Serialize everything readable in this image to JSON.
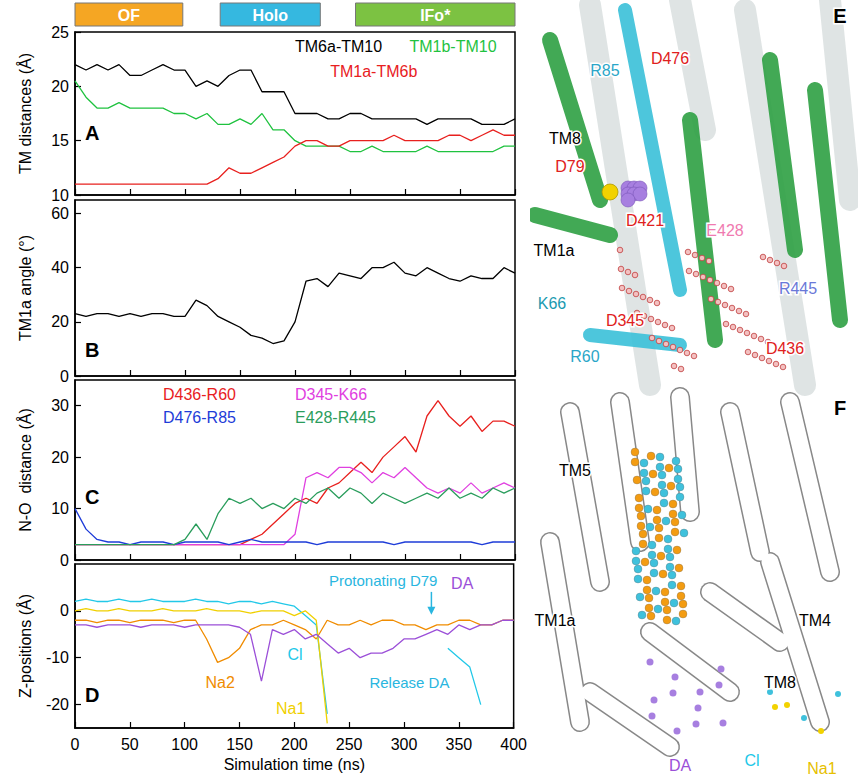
{
  "states": [
    {
      "label": "OF",
      "start": 0,
      "end": 98,
      "color": "#f5a623"
    },
    {
      "label": "Holo",
      "start": 132,
      "end": 223,
      "color": "#35b8e0"
    },
    {
      "label": "IFo*",
      "start": 255,
      "end": 400,
      "color": "#7cc242"
    }
  ],
  "chart_data": [
    {
      "type": "line",
      "panel": "A",
      "x": [
        0,
        10,
        20,
        30,
        40,
        50,
        60,
        70,
        80,
        90,
        100,
        110,
        120,
        130,
        140,
        150,
        160,
        170,
        180,
        190,
        200,
        210,
        220,
        230,
        240,
        250,
        260,
        270,
        280,
        290,
        300,
        310,
        320,
        330,
        340,
        350,
        360,
        370,
        380,
        390,
        400
      ],
      "xlim": [
        0,
        400
      ],
      "xticks": [
        0,
        50,
        100,
        150,
        200,
        250,
        300,
        350,
        400
      ],
      "ylim": [
        10,
        25
      ],
      "yticks": [
        10,
        15,
        20,
        25
      ],
      "y_label": "TM distances (Å)",
      "tick_labels": "y",
      "grid": false,
      "series": [
        {
          "name": "TM6a-TM10",
          "color": "#000000",
          "values": [
            22,
            21.5,
            22,
            21.5,
            22,
            21,
            21,
            21.5,
            22,
            21.5,
            21.5,
            20,
            20.5,
            20,
            21,
            21.5,
            21.5,
            19.5,
            19.5,
            19.5,
            17.5,
            17.5,
            17.5,
            17,
            17,
            17.5,
            17.5,
            17,
            17,
            17,
            17,
            17,
            16.5,
            17,
            17,
            17,
            17,
            16.5,
            16.5,
            16.5,
            17
          ]
        },
        {
          "name": "TM1b-TM10",
          "color": "#1fc23f",
          "values": [
            20.5,
            19,
            18,
            18,
            18.5,
            18,
            18,
            18,
            18,
            17.5,
            17.5,
            17,
            17.5,
            16.5,
            16.5,
            17,
            16.5,
            17.5,
            16,
            16,
            15,
            14.5,
            14.5,
            14.5,
            14.5,
            14,
            14,
            14.5,
            14,
            14,
            14,
            14,
            14.5,
            14,
            14,
            14,
            14,
            14,
            14,
            14.5,
            14.5
          ]
        },
        {
          "name": "TM1a-TM6b",
          "color": "#e8201e",
          "values": [
            11,
            11,
            11,
            11,
            11,
            11,
            11,
            11,
            11,
            11,
            11,
            11,
            11,
            11.5,
            12.5,
            12,
            12,
            12.5,
            13,
            13.5,
            14.5,
            15,
            15,
            14.5,
            14.5,
            15,
            15,
            15,
            15,
            15.5,
            15,
            15,
            15,
            15,
            15.5,
            15.5,
            15,
            15.5,
            16,
            15.5,
            15.5
          ]
        }
      ]
    },
    {
      "type": "line",
      "panel": "B",
      "x": [
        0,
        10,
        20,
        30,
        40,
        50,
        60,
        70,
        80,
        90,
        100,
        110,
        120,
        130,
        140,
        150,
        160,
        170,
        180,
        190,
        200,
        210,
        220,
        230,
        240,
        250,
        260,
        270,
        280,
        290,
        300,
        310,
        320,
        330,
        340,
        350,
        360,
        370,
        380,
        390,
        400
      ],
      "xlim": [
        0,
        400
      ],
      "xticks": [
        0,
        50,
        100,
        150,
        200,
        250,
        300,
        350,
        400
      ],
      "ylim": [
        0,
        65
      ],
      "yticks": [
        0,
        20,
        40,
        60
      ],
      "y_label": "TM1a angle (°)",
      "tick_labels": "y",
      "grid": false,
      "color": "#000000",
      "values": [
        23,
        22,
        23,
        23,
        22,
        23,
        22,
        23,
        23,
        22,
        22,
        28,
        26,
        22,
        20,
        18,
        15,
        14,
        12,
        13,
        20,
        35,
        36,
        33,
        38,
        37,
        36,
        40,
        40,
        42,
        38,
        37,
        40,
        38,
        36,
        35,
        37,
        36,
        36,
        40,
        38
      ]
    },
    {
      "type": "line",
      "panel": "C",
      "x": [
        0,
        10,
        20,
        30,
        40,
        50,
        60,
        70,
        80,
        90,
        100,
        110,
        120,
        130,
        140,
        150,
        160,
        170,
        180,
        190,
        200,
        210,
        220,
        230,
        240,
        250,
        260,
        270,
        280,
        290,
        300,
        310,
        320,
        330,
        340,
        350,
        360,
        370,
        380,
        390,
        400
      ],
      "xlim": [
        0,
        400
      ],
      "xticks": [
        0,
        50,
        100,
        150,
        200,
        250,
        300,
        350,
        400
      ],
      "ylim": [
        0,
        35
      ],
      "yticks": [
        0,
        10,
        20,
        30
      ],
      "y_label": "N-O  distance (Å)",
      "tick_labels": "y",
      "grid": false,
      "series": [
        {
          "name": "D436-R60",
          "color": "#e8201e",
          "values": [
            3,
            3,
            3,
            3,
            3,
            3,
            3,
            3,
            3,
            3,
            3,
            3,
            3,
            3,
            3,
            3,
            4,
            5,
            7,
            9,
            11,
            12,
            11,
            14,
            15,
            17,
            19,
            17,
            20,
            22,
            24,
            21,
            28,
            31,
            28,
            26,
            28,
            25,
            27,
            27,
            26
          ]
        },
        {
          "name": "D345-K66",
          "color": "#e040e0",
          "values": [
            3,
            3,
            3,
            3,
            3,
            3,
            3,
            3,
            3,
            3,
            3,
            3,
            3,
            3,
            3,
            3,
            3,
            3,
            3,
            3,
            5,
            16,
            17,
            16,
            18,
            18,
            17,
            15,
            17,
            16,
            18,
            16,
            14,
            13,
            14,
            13,
            15,
            13,
            14,
            15,
            14
          ]
        },
        {
          "name": "D476-R85",
          "color": "#1e3cd8",
          "values": [
            10,
            6,
            4,
            3.5,
            3.5,
            3,
            3.5,
            3.5,
            3.5,
            3,
            3.5,
            3.5,
            3.5,
            3.5,
            3,
            3.5,
            4,
            3.5,
            3.5,
            3.5,
            3.5,
            3.5,
            3,
            3.5,
            3.5,
            3.5,
            3.5,
            3.5,
            3.5,
            3,
            3.5,
            3.5,
            3.5,
            3.5,
            3.5,
            3.5,
            3.5,
            3,
            3.5,
            3.5,
            3.5
          ]
        },
        {
          "name": "E428-R445",
          "color": "#2a9d5c",
          "values": [
            3,
            3,
            3,
            3,
            3,
            3,
            3,
            3,
            3,
            3,
            4,
            7,
            4,
            9,
            12,
            11,
            12,
            10,
            11,
            10,
            12,
            11,
            13,
            14,
            12,
            14,
            13,
            11,
            13,
            12,
            11,
            12,
            13,
            12,
            14,
            12,
            13,
            12,
            14,
            13,
            14
          ]
        }
      ]
    },
    {
      "type": "line",
      "panel": "D",
      "x": [
        0,
        10,
        20,
        30,
        40,
        50,
        60,
        70,
        80,
        90,
        100,
        110,
        120,
        130,
        140,
        150,
        160,
        170,
        180,
        190,
        200,
        210,
        220,
        230,
        240,
        250,
        260,
        270,
        280,
        290,
        300,
        310,
        320,
        330,
        340,
        350,
        360,
        370,
        380,
        390,
        400
      ],
      "xlim": [
        0,
        400
      ],
      "xticks": [
        0,
        50,
        100,
        150,
        200,
        250,
        300,
        350,
        400
      ],
      "ylim": [
        -25,
        10
      ],
      "yticks": [
        -20,
        -10,
        0
      ],
      "x_label": "Simulation time (ns)",
      "y_label": "Z-positions (Å)",
      "grid": false,
      "series": [
        {
          "name": "Na2",
          "color": "#f08c00",
          "values": [
            -2,
            -2,
            -2.5,
            -2,
            -2,
            -2.5,
            -2,
            -2,
            -2,
            -2.5,
            -2,
            -2,
            -6,
            -11,
            -10,
            -8,
            -4,
            -3,
            -3,
            -2,
            -3,
            -4,
            -6,
            -2,
            -3,
            -3,
            -2,
            -3,
            -2,
            -2,
            -3,
            -3,
            -4,
            -3,
            -3,
            -2,
            -2,
            -3,
            -3,
            -2,
            -2
          ]
        },
        {
          "name": "Cl",
          "color": "#22c8e8",
          "values": [
            2,
            2.5,
            2,
            2,
            2.5,
            2,
            2,
            2.5,
            2,
            2,
            2,
            2.5,
            2,
            2,
            1.5,
            2,
            2,
            1.5,
            2,
            1.5,
            1,
            -1,
            -3,
            -22,
            null,
            null,
            null,
            null,
            null,
            null,
            null,
            null,
            null,
            null,
            -8,
            -10,
            -12,
            -20,
            null,
            null,
            null
          ]
        },
        {
          "name": "Na1",
          "color": "#f0d000",
          "values": [
            0,
            0.5,
            0,
            0,
            0.5,
            0,
            0,
            0,
            0.5,
            0,
            0,
            0,
            0.5,
            0,
            0,
            0,
            -0.5,
            0,
            0,
            0,
            -1,
            0,
            -2,
            -24,
            null,
            null,
            null,
            null,
            null,
            null,
            null,
            null,
            null,
            null,
            null,
            null,
            null,
            null,
            null,
            null,
            null
          ]
        },
        {
          "name": "DA",
          "color": "#9b4fd8",
          "values": [
            -3,
            -3,
            -3.5,
            -3,
            -3,
            -3,
            -3.5,
            -3,
            -3,
            -3,
            -3.5,
            -3,
            -3,
            -3,
            -3,
            -3.5,
            -5,
            -15,
            -4,
            -5,
            -4,
            -6,
            -5,
            -7,
            -9,
            -8,
            -10,
            -9,
            -9,
            -8,
            -6,
            -6,
            -5,
            -4,
            -5,
            -3,
            -4,
            -3,
            -3,
            -2,
            -2
          ]
        }
      ],
      "annotations": [
        {
          "text": "Protonating D79",
          "x": 325,
          "color": "#29b6e0"
        },
        {
          "text": "Release DA",
          "color": "#29b6e0"
        }
      ]
    }
  ],
  "structures": [
    {
      "panel": "E",
      "labels": [
        {
          "text": "R85",
          "color": "#2aa6c8"
        },
        {
          "text": "D476",
          "color": "#e02020"
        },
        {
          "text": "TM8",
          "color": "#000000"
        },
        {
          "text": "D79",
          "color": "#e02020"
        },
        {
          "text": "D421",
          "color": "#e02020"
        },
        {
          "text": "TM1a",
          "color": "#000000"
        },
        {
          "text": "K66",
          "color": "#1a9ab0"
        },
        {
          "text": "E428",
          "color": "#f07ab0"
        },
        {
          "text": "R445",
          "color": "#6a78d8"
        },
        {
          "text": "D345",
          "color": "#e02020"
        },
        {
          "text": "R60",
          "color": "#2aa6c8"
        },
        {
          "text": "D436",
          "color": "#e02020"
        }
      ]
    },
    {
      "panel": "F",
      "labels": [
        {
          "text": "TM5",
          "color": "#000000"
        },
        {
          "text": "TM1a",
          "color": "#000000"
        },
        {
          "text": "TM4",
          "color": "#000000"
        },
        {
          "text": "TM8",
          "color": "#000000"
        },
        {
          "text": "DA",
          "color": "#9b4fd8"
        },
        {
          "text": "Cl",
          "color": "#22c8e8"
        },
        {
          "text": "Na1",
          "color": "#e6c000"
        }
      ]
    }
  ]
}
